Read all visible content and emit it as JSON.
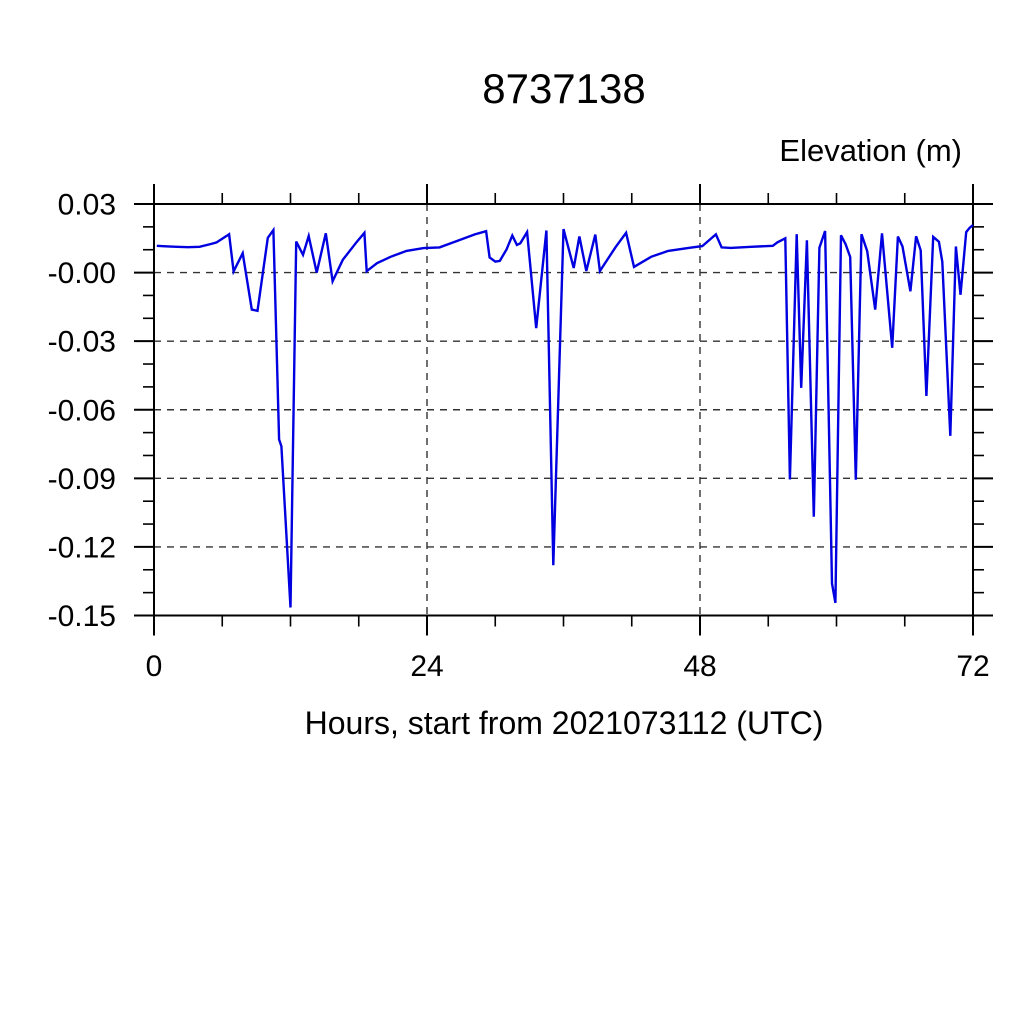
{
  "page_background": "#ffffff",
  "chart_data": {
    "type": "line",
    "title": "8737138",
    "header": "Elevation (m)",
    "ylabel": "Elevation (m)",
    "xlabel": "Hours, start from 2021073112 (UTC)",
    "legend": "none",
    "grid": {
      "show": true,
      "style": "dashed",
      "x_values": [
        24,
        48
      ],
      "y_values": [
        0.03,
        0,
        -0.03,
        -0.06,
        -0.09,
        -0.12,
        -0.15
      ]
    },
    "x_axis": {
      "min": 0,
      "max": 72,
      "minor_tick_step": 6,
      "major_ticks": [
        {
          "value": 0,
          "label": "0"
        },
        {
          "value": 24,
          "label": "24"
        },
        {
          "value": 48,
          "label": "48"
        },
        {
          "value": 72,
          "label": "72"
        }
      ]
    },
    "y_axis": {
      "min": -0.15,
      "max": 0.03,
      "minor_tick_step": 0.01,
      "major_ticks": [
        {
          "value": 0.03,
          "label": "0.03"
        },
        {
          "value": 0,
          "label": "-0.00"
        },
        {
          "value": -0.03,
          "label": "-0.03"
        },
        {
          "value": -0.06,
          "label": "-0.06"
        },
        {
          "value": -0.09,
          "label": "-0.09"
        },
        {
          "value": -0.12,
          "label": "-0.12"
        },
        {
          "value": -0.15,
          "label": "-0.15"
        }
      ]
    },
    "colors": {
      "line": "#0000e0",
      "grid": "#333333",
      "frame": "#000000",
      "text": "#000000"
    },
    "series": [
      {
        "name": "elevation",
        "points": [
          [
            0.25,
            0.0117
          ],
          [
            1,
            0.0115
          ],
          [
            2,
            0.0113
          ],
          [
            3,
            0.0111
          ],
          [
            4,
            0.0113
          ],
          [
            5,
            0.0125
          ],
          [
            5.5,
            0.0132
          ],
          [
            6.4,
            0.0161
          ],
          [
            6.6,
            0.0168
          ],
          [
            7,
            0.0005
          ],
          [
            7.8,
            0.0085
          ],
          [
            8.6,
            -0.0162
          ],
          [
            9.1,
            -0.0167
          ],
          [
            10,
            0.0152
          ],
          [
            10.5,
            0.0186
          ],
          [
            11,
            -0.073
          ],
          [
            11.2,
            -0.076
          ],
          [
            12,
            -0.1465
          ],
          [
            12.5,
            0.0136
          ],
          [
            13.1,
            0.0078
          ],
          [
            13.6,
            0.016
          ],
          [
            14.3,
            0
          ],
          [
            15.1,
            0.0172
          ],
          [
            15.7,
            -0.0038
          ],
          [
            16.6,
            0.0056
          ],
          [
            17.8,
            0.0133
          ],
          [
            18.5,
            0.0174
          ],
          [
            18.7,
            0.0006
          ],
          [
            19.6,
            0.0041
          ],
          [
            20.8,
            0.0069
          ],
          [
            22.2,
            0.0095
          ],
          [
            23.7,
            0.0107
          ],
          [
            25.1,
            0.011
          ],
          [
            26.9,
            0.0143
          ],
          [
            28.2,
            0.0167
          ],
          [
            29.2,
            0.0181
          ],
          [
            29.5,
            0.0066
          ],
          [
            30,
            0.0048
          ],
          [
            30.4,
            0.0051
          ],
          [
            31,
            0.0102
          ],
          [
            31.5,
            0.0162
          ],
          [
            31.9,
            0.0121
          ],
          [
            32.2,
            0.0128
          ],
          [
            32.8,
            0.0177
          ],
          [
            33.6,
            -0.0243
          ],
          [
            34.5,
            0.0184
          ],
          [
            35.1,
            -0.128
          ],
          [
            36,
            0.019
          ],
          [
            36.9,
            0.002
          ],
          [
            37.4,
            0.0158
          ],
          [
            38,
            0.0007
          ],
          [
            38.8,
            0.0166
          ],
          [
            39.2,
            0.0007
          ],
          [
            40.6,
            0.0113
          ],
          [
            41.5,
            0.0174
          ],
          [
            42.2,
            0.0025
          ],
          [
            43.7,
            0.0069
          ],
          [
            45.2,
            0.0095
          ],
          [
            47,
            0.0108
          ],
          [
            48.2,
            0.0116
          ],
          [
            49.4,
            0.0167
          ],
          [
            49.9,
            0.011
          ],
          [
            50.7,
            0.0108
          ],
          [
            52.5,
            0.0113
          ],
          [
            54.4,
            0.0117
          ],
          [
            54.8,
            0.0132
          ],
          [
            55.5,
            0.015
          ],
          [
            55.9,
            -0.0905
          ],
          [
            56.5,
            0.0168
          ],
          [
            56.9,
            -0.0504
          ],
          [
            57.4,
            0.0141
          ],
          [
            58,
            -0.1068
          ],
          [
            58.5,
            0.0109
          ],
          [
            59,
            0.0182
          ],
          [
            59.6,
            -0.136
          ],
          [
            59.9,
            -0.1445
          ],
          [
            60.4,
            0.0163
          ],
          [
            60.8,
            0.0124
          ],
          [
            61.2,
            0.0068
          ],
          [
            61.7,
            -0.0906
          ],
          [
            62.2,
            0.0168
          ],
          [
            62.7,
            0.0094
          ],
          [
            63.4,
            -0.0162
          ],
          [
            64,
            0.0172
          ],
          [
            64.9,
            -0.0329
          ],
          [
            65.4,
            0.0158
          ],
          [
            65.8,
            0.0114
          ],
          [
            66.5,
            -0.0082
          ],
          [
            67,
            0.0159
          ],
          [
            67.4,
            0.0097
          ],
          [
            67.9,
            -0.054
          ],
          [
            68.5,
            0.0156
          ],
          [
            69,
            0.0135
          ],
          [
            69.3,
            0.0047
          ],
          [
            70,
            -0.0714
          ],
          [
            70.5,
            0.0114
          ],
          [
            70.9,
            -0.0097
          ],
          [
            71.4,
            0.0177
          ],
          [
            71.7,
            0.0196
          ],
          [
            72,
            0.0208
          ]
        ]
      }
    ]
  }
}
